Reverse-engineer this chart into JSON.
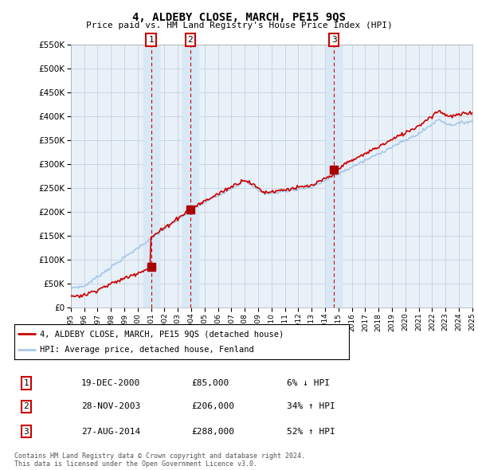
{
  "title": "4, ALDEBY CLOSE, MARCH, PE15 9QS",
  "subtitle": "Price paid vs. HM Land Registry's House Price Index (HPI)",
  "x_start_year": 1995,
  "x_end_year": 2025,
  "y_min": 0,
  "y_max": 550000,
  "y_ticks": [
    0,
    50000,
    100000,
    150000,
    200000,
    250000,
    300000,
    350000,
    400000,
    450000,
    500000,
    550000
  ],
  "hpi_color": "#a8c8e8",
  "price_color": "#cc0000",
  "sale_marker_color": "#aa0000",
  "vline_color": "#cc0000",
  "vline_shade_color": "#d8e8f4",
  "plot_bg_color": "#e8f0f8",
  "grid_color": "#c0ccd8",
  "sale_points": [
    {
      "year": 2001.0,
      "price": 85000,
      "label": "1"
    },
    {
      "year": 2003.92,
      "price": 206000,
      "label": "2"
    },
    {
      "year": 2014.67,
      "price": 288000,
      "label": "3"
    }
  ],
  "legend_entries": [
    {
      "label": "4, ALDEBY CLOSE, MARCH, PE15 9QS (detached house)",
      "color": "#cc0000"
    },
    {
      "label": "HPI: Average price, detached house, Fenland",
      "color": "#a8c8e8"
    }
  ],
  "table_rows": [
    {
      "num": "1",
      "date": "19-DEC-2000",
      "price": "£85,000",
      "change": "6% ↓ HPI"
    },
    {
      "num": "2",
      "date": "28-NOV-2003",
      "price": "£206,000",
      "change": "34% ↑ HPI"
    },
    {
      "num": "3",
      "date": "27-AUG-2014",
      "price": "£288,000",
      "change": "52% ↑ HPI"
    }
  ],
  "footer": "Contains HM Land Registry data © Crown copyright and database right 2024.\nThis data is licensed under the Open Government Licence v3.0.",
  "background_color": "#ffffff"
}
